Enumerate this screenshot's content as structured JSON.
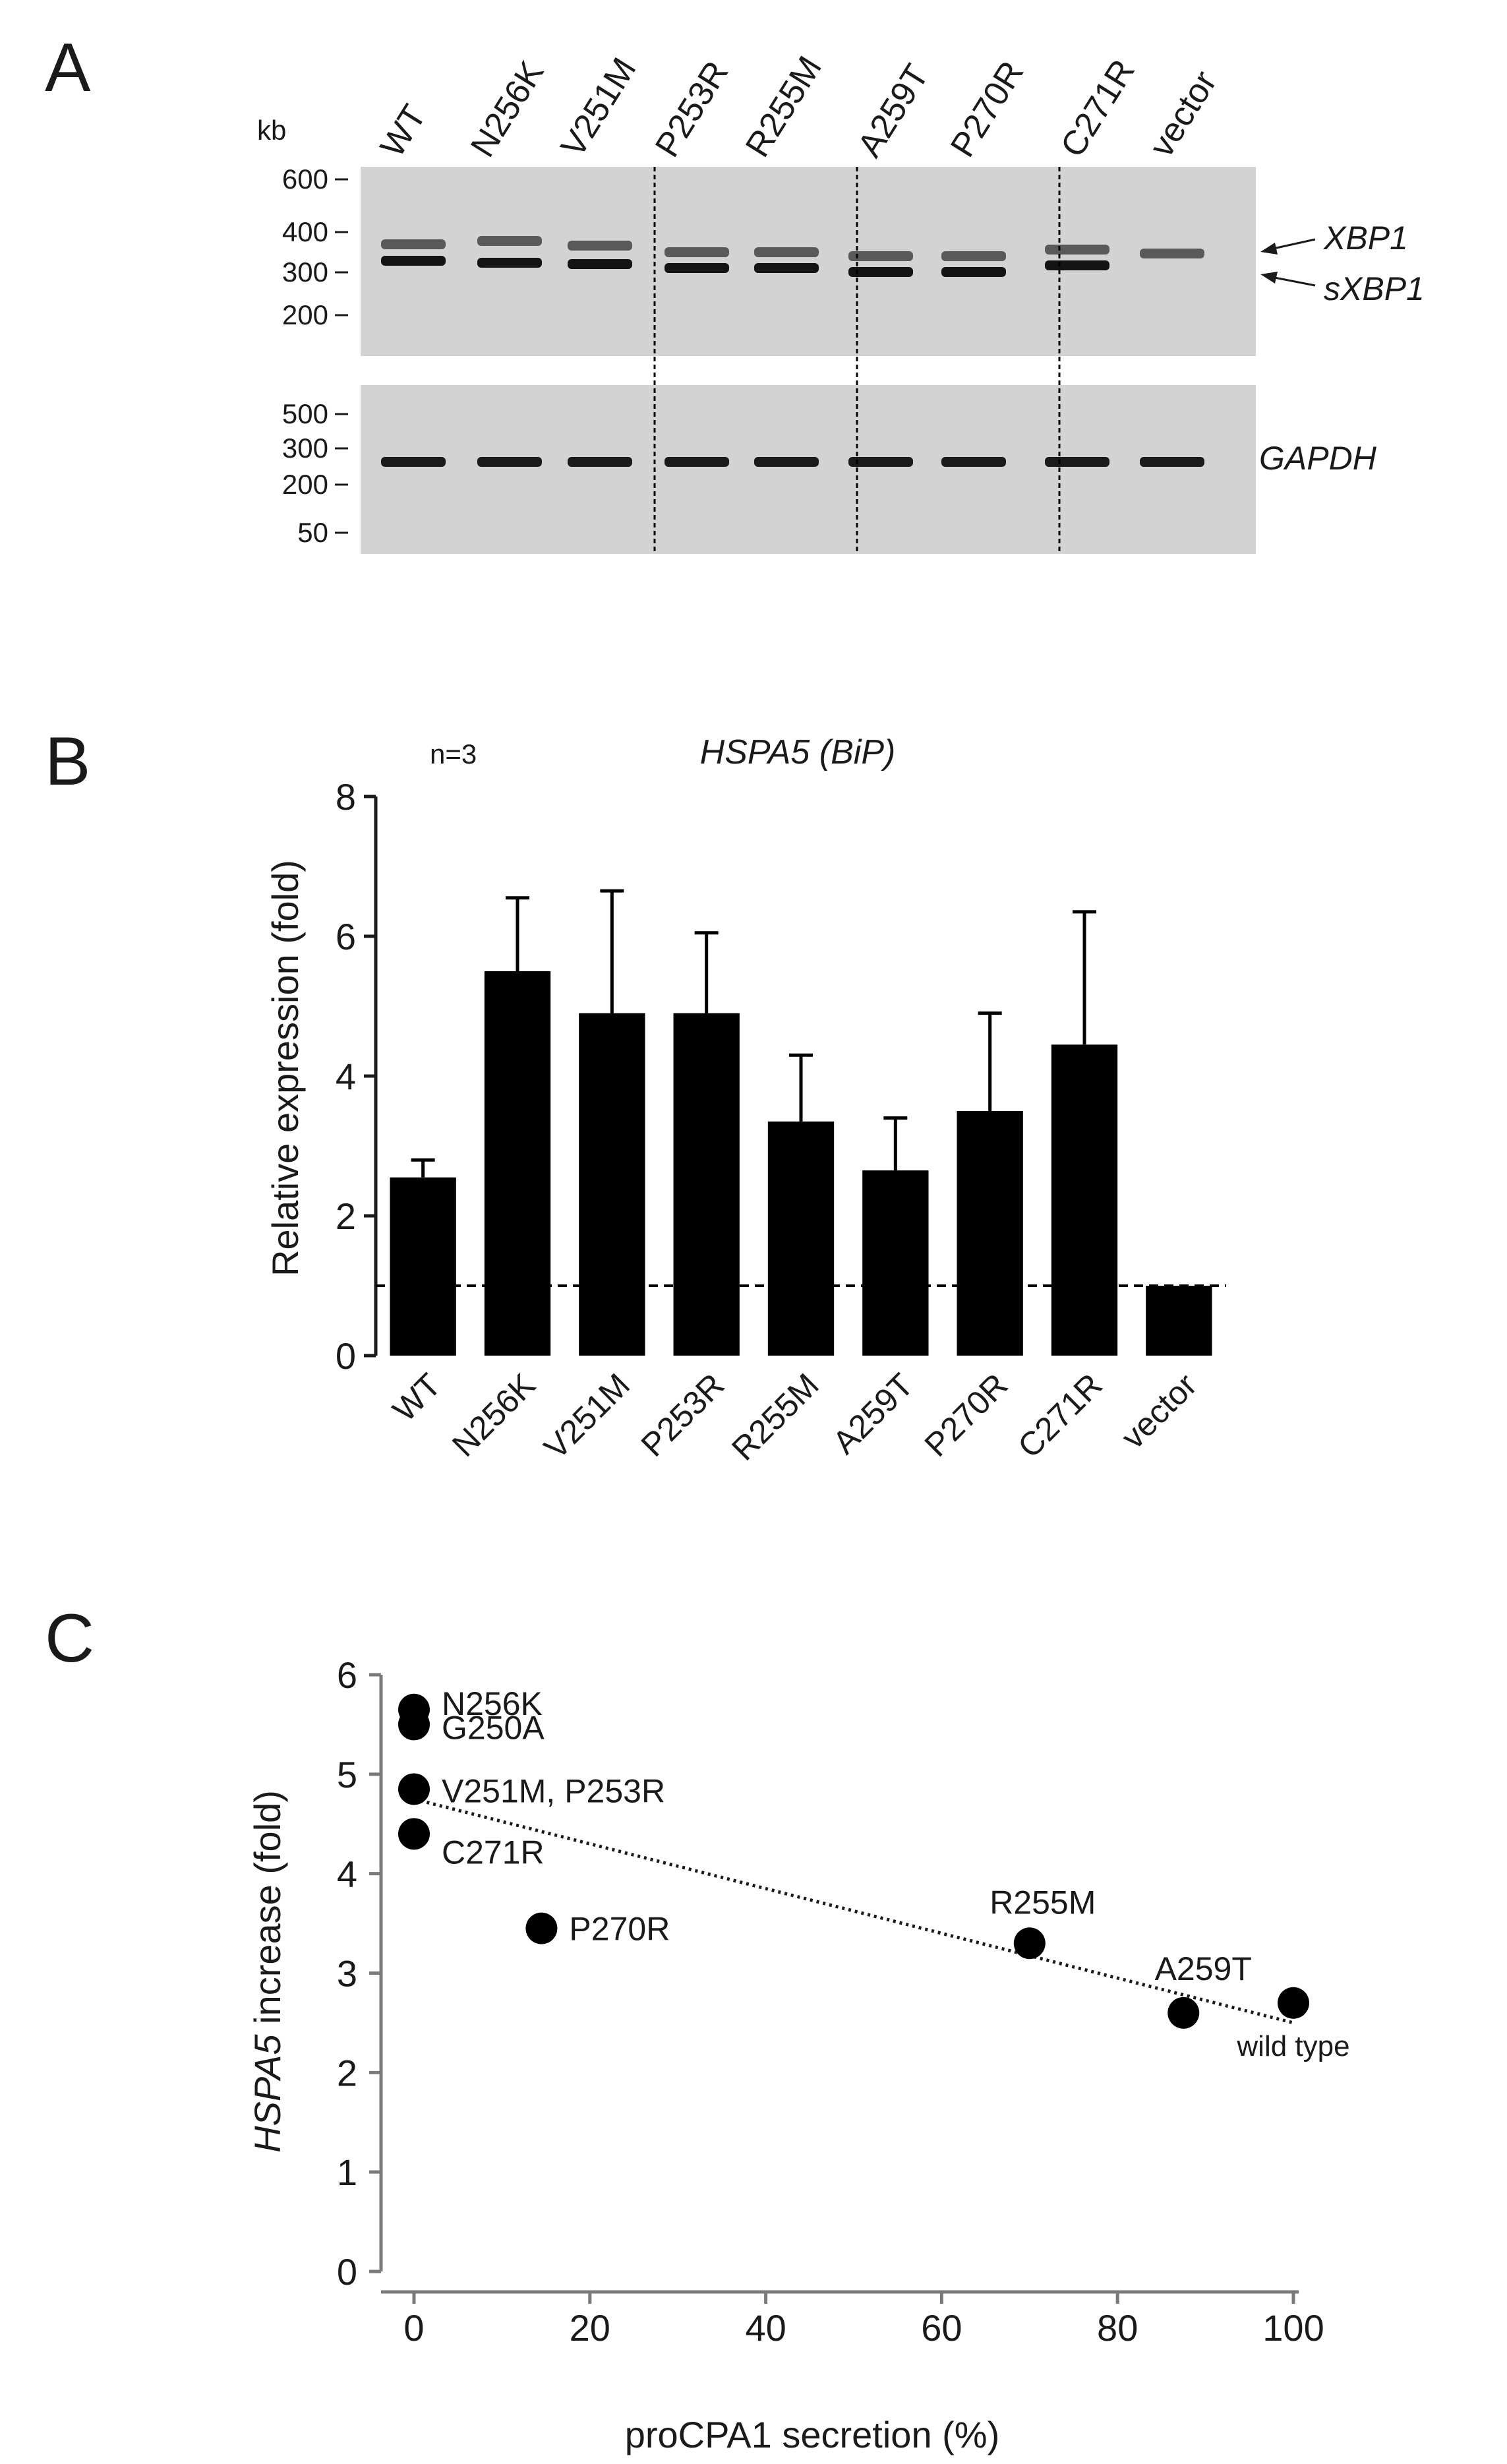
{
  "panels": {
    "a": {
      "letter": "A",
      "kb_unit": "kb",
      "lanes": [
        "WT",
        "N256K",
        "V251M",
        "P253R",
        "R255M",
        "A259T",
        "P270R",
        "C271R",
        "vector"
      ],
      "upper_ladder": [
        "600",
        "400",
        "300",
        "200"
      ],
      "lower_ladder": [
        "500",
        "300",
        "200",
        "50"
      ],
      "bands": {
        "xbp1": "XBP1",
        "sxbp1": "sXBP1",
        "gapdh": "GAPDH"
      }
    },
    "b": {
      "letter": "B",
      "n_label": "n=3"
    },
    "c": {
      "letter": "C"
    }
  },
  "chart_data": [
    {
      "type": "bar",
      "title": "HSPA5 (BiP)",
      "ylabel": "Relative expression (fold)",
      "xlabel": "",
      "categories": [
        "WT",
        "N256K",
        "V251M",
        "P253R",
        "R255M",
        "A259T",
        "P270R",
        "C271R",
        "vector"
      ],
      "values": [
        2.55,
        5.5,
        4.9,
        4.9,
        3.35,
        2.65,
        3.5,
        4.45,
        1.0
      ],
      "errors": [
        0.25,
        1.05,
        1.75,
        1.15,
        0.95,
        0.75,
        1.4,
        1.9,
        0.0
      ],
      "ylim": [
        0,
        8
      ],
      "yticks": [
        "0",
        "2",
        "4",
        "6",
        "8"
      ],
      "reference_line": 1.0
    },
    {
      "type": "scatter",
      "title": "",
      "xlabel": "proCPA1 secretion (%)",
      "ylabel": "HSPA5 increase (fold)",
      "ylabel_italic": "HSPA5",
      "ylabel_rest": " increase (fold)",
      "xlim": [
        0,
        100
      ],
      "ylim": [
        0,
        6
      ],
      "xticks": [
        "0",
        "20",
        "40",
        "60",
        "80",
        "100"
      ],
      "yticks": [
        "0",
        "1",
        "2",
        "3",
        "4",
        "5",
        "6"
      ],
      "points": [
        {
          "x": 0,
          "y": 5.65
        },
        {
          "x": 0,
          "y": 5.5
        },
        {
          "x": 0,
          "y": 4.85
        },
        {
          "x": 0,
          "y": 4.4
        },
        {
          "x": 14.5,
          "y": 3.45
        },
        {
          "x": 70,
          "y": 3.3
        },
        {
          "x": 87.5,
          "y": 2.6
        },
        {
          "x": 100,
          "y": 2.7
        }
      ],
      "point_labels": [
        "N256K",
        "G250A",
        "V251M, P253R",
        "C271R",
        "P270R",
        "R255M",
        "A259T",
        "wild type"
      ],
      "trendline": {
        "x": [
          0,
          100
        ],
        "y": [
          4.75,
          2.5
        ]
      }
    }
  ]
}
